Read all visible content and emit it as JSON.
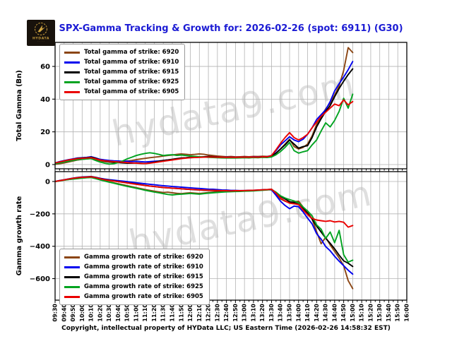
{
  "header": {
    "title": "SPX-Gamma Tracking & Growth for: 2026-02-26 (spot: 6911) (G30)"
  },
  "logo": {
    "brand": "HYDATA"
  },
  "watermark": "hydata9.com",
  "footer": "Copyright, intellectual property of HYData LLC; US Eastern Time (2026-02-26 14:58:32 EST)",
  "colors": {
    "title": "#1b1bd4",
    "grid": "#b3b3b3",
    "frame": "#000000",
    "watermark": "#dfdfdf",
    "series_brown": "#8B4513",
    "series_blue": "#0000EE",
    "series_black": "#000000",
    "series_green": "#00A320",
    "series_red": "#EA0000"
  },
  "x_axis": {
    "start": "09:30",
    "end": "16:00",
    "tick_step_minutes": 10,
    "minor_tick_minutes": 5,
    "data_end": "15:00",
    "labels": [
      "09:30",
      "09:40",
      "09:50",
      "10:00",
      "10:10",
      "10:20",
      "10:30",
      "10:40",
      "10:50",
      "11:00",
      "11:10",
      "11:20",
      "11:30",
      "11:40",
      "11:50",
      "12:00",
      "12:10",
      "12:20",
      "12:30",
      "12:40",
      "12:50",
      "13:00",
      "13:10",
      "13:20",
      "13:30",
      "13:40",
      "13:50",
      "14:00",
      "14:10",
      "14:20",
      "14:30",
      "14:40",
      "14:50",
      "15:00",
      "15:10",
      "15:20",
      "15:30",
      "15:40",
      "15:50",
      "16:00"
    ]
  },
  "chart_data": [
    {
      "type": "line",
      "panel": "top",
      "ylabel": "Total Gamma (Bn)",
      "ylim": [
        -2.6,
        74.7
      ],
      "yticks": [
        0,
        20,
        40,
        60
      ],
      "grid": true,
      "legend_position": "upper-left",
      "x_start": "09:30",
      "x_step_minutes": 5,
      "series": [
        {
          "name": "6920",
          "label": "Total gamma of strike: 6920",
          "color": "#8B4513",
          "values": [
            0.2,
            0.5,
            1.0,
            1.6,
            2.2,
            2.8,
            3.2,
            3.5,
            3.8,
            3.0,
            2.2,
            1.8,
            1.5,
            1.3,
            1.5,
            1.8,
            2.2,
            2.5,
            3.0,
            3.4,
            3.8,
            4.2,
            4.5,
            4.8,
            5.2,
            5.5,
            5.8,
            6.2,
            6.5,
            6.3,
            6.0,
            6.2,
            6.5,
            6.3,
            5.8,
            5.5,
            5.2,
            5.0,
            4.8,
            4.9,
            4.7,
            4.8,
            4.9,
            4.8,
            5.0,
            4.9,
            5.1,
            5.0,
            5.2,
            7.0,
            9.5,
            12.5,
            15.5,
            11.0,
            9.5,
            10.5,
            12.5,
            17.5,
            24.5,
            29.0,
            34.0,
            37.5,
            42.5,
            48.0,
            57.5,
            71.5,
            68.5
          ]
        },
        {
          "name": "6910",
          "label": "Total gamma of strike: 6910",
          "color": "#0000EE",
          "values": [
            1.0,
            1.8,
            2.4,
            3.0,
            3.5,
            4.0,
            4.2,
            4.4,
            4.8,
            4.0,
            3.2,
            2.8,
            2.5,
            2.3,
            2.2,
            2.0,
            2.0,
            1.8,
            2.0,
            1.8,
            1.6,
            1.8,
            2.0,
            2.2,
            2.5,
            2.8,
            3.0,
            3.4,
            3.8,
            4.0,
            4.2,
            4.4,
            4.5,
            4.6,
            4.8,
            4.7,
            4.6,
            4.5,
            4.5,
            4.6,
            4.4,
            4.5,
            4.6,
            4.5,
            4.7,
            4.6,
            4.8,
            4.8,
            5.5,
            8.5,
            12.0,
            14.5,
            17.0,
            15.0,
            14.0,
            15.5,
            18.5,
            22.5,
            27.5,
            30.5,
            33.5,
            38.5,
            45.0,
            49.5,
            53.5,
            58.0,
            63.0
          ]
        },
        {
          "name": "6915",
          "label": "Total gamma of strike: 6915",
          "color": "#000000",
          "values": [
            0.8,
            1.5,
            2.2,
            2.8,
            3.2,
            3.8,
            4.0,
            4.2,
            4.5,
            3.8,
            2.8,
            2.2,
            1.8,
            1.5,
            1.2,
            1.0,
            0.8,
            0.8,
            1.0,
            0.8,
            0.6,
            1.0,
            1.5,
            2.0,
            2.5,
            2.8,
            3.2,
            3.6,
            4.0,
            4.2,
            4.5,
            4.3,
            4.6,
            4.8,
            5.0,
            4.8,
            4.6,
            4.5,
            4.4,
            4.5,
            4.3,
            4.4,
            4.5,
            4.4,
            4.6,
            4.5,
            4.7,
            4.6,
            5.0,
            7.0,
            9.5,
            12.0,
            15.0,
            12.5,
            10.0,
            11.0,
            11.5,
            16.5,
            23.0,
            28.0,
            32.5,
            36.0,
            41.5,
            46.5,
            51.0,
            55.0,
            58.5
          ]
        },
        {
          "name": "6925",
          "label": "Total gamma of strike: 6925",
          "color": "#00A320",
          "values": [
            0.5,
            1.0,
            1.5,
            2.0,
            2.5,
            3.0,
            3.2,
            3.4,
            3.6,
            2.5,
            1.5,
            0.8,
            0.3,
            0.5,
            1.2,
            2.2,
            3.5,
            4.5,
            5.5,
            6.2,
            6.8,
            7.2,
            6.8,
            6.2,
            5.5,
            5.8,
            6.0,
            5.6,
            5.8,
            5.5,
            5.2,
            5.0,
            4.8,
            4.6,
            4.4,
            4.3,
            4.2,
            4.1,
            4.0,
            4.1,
            4.0,
            4.1,
            4.2,
            4.1,
            4.3,
            4.2,
            4.4,
            4.3,
            4.6,
            6.0,
            8.0,
            10.5,
            13.5,
            8.5,
            7.0,
            7.8,
            8.5,
            12.0,
            15.0,
            20.5,
            25.5,
            23.0,
            27.0,
            32.5,
            40.5,
            34.5,
            43.0
          ]
        },
        {
          "name": "6905",
          "label": "Total gamma of strike: 6905",
          "color": "#EA0000",
          "values": [
            1.0,
            1.6,
            2.2,
            2.8,
            3.2,
            3.6,
            3.8,
            4.0,
            4.2,
            3.5,
            2.8,
            2.3,
            2.0,
            1.8,
            1.6,
            1.4,
            1.2,
            1.0,
            0.8,
            0.7,
            0.6,
            0.8,
            1.2,
            1.6,
            2.0,
            2.4,
            2.8,
            3.2,
            3.6,
            3.9,
            4.2,
            4.3,
            4.4,
            4.5,
            4.6,
            4.6,
            4.5,
            4.5,
            4.4,
            4.5,
            4.4,
            4.5,
            4.5,
            4.5,
            4.6,
            4.5,
            4.7,
            4.7,
            5.5,
            9.0,
            13.0,
            16.5,
            19.5,
            16.5,
            15.0,
            16.5,
            18.5,
            22.5,
            26.0,
            29.5,
            32.0,
            34.5,
            37.0,
            36.0,
            39.5,
            36.5,
            38.5
          ]
        }
      ]
    },
    {
      "type": "line",
      "panel": "bottom",
      "ylabel": "Gamma growth rate",
      "ylim": [
        -733,
        61
      ],
      "yticks": [
        0,
        -200,
        -400,
        -600
      ],
      "grid": true,
      "legend_position": "lower-left",
      "x_start": "09:30",
      "x_step_minutes": 5,
      "series": [
        {
          "name": "6920",
          "label": "Gamma growth rate of strike: 6920",
          "color": "#8B4513",
          "values": [
            0,
            4,
            8,
            12,
            16,
            19,
            22,
            24,
            26,
            20,
            12,
            5,
            -2,
            -8,
            -14,
            -20,
            -26,
            -32,
            -38,
            -44,
            -50,
            -55,
            -60,
            -64,
            -68,
            -66,
            -70,
            -73,
            -75,
            -72,
            -70,
            -72,
            -74,
            -71,
            -68,
            -66,
            -64,
            -62,
            -61,
            -60,
            -59,
            -58,
            -57,
            -56,
            -55,
            -54,
            -52,
            -51,
            -50,
            -75,
            -108,
            -122,
            -132,
            -125,
            -122,
            -158,
            -190,
            -232,
            -310,
            -385,
            -345,
            -392,
            -432,
            -472,
            -520,
            -612,
            -662
          ]
        },
        {
          "name": "6910",
          "label": "Gamma growth rate of strike: 6910",
          "color": "#0000EE",
          "values": [
            0,
            6,
            11,
            16,
            21,
            25,
            28,
            29,
            31,
            26,
            20,
            15,
            11,
            8,
            5,
            2,
            -1,
            -4,
            -8,
            -11,
            -14,
            -17,
            -20,
            -23,
            -26,
            -28,
            -31,
            -33,
            -35,
            -37,
            -39,
            -41,
            -43,
            -45,
            -47,
            -48,
            -50,
            -52,
            -53,
            -55,
            -55,
            -56,
            -56,
            -55,
            -54,
            -53,
            -51,
            -50,
            -52,
            -85,
            -122,
            -148,
            -168,
            -152,
            -156,
            -188,
            -226,
            -262,
            -322,
            -356,
            -402,
            -428,
            -462,
            -492,
            -520,
            -548,
            -572
          ]
        },
        {
          "name": "6915",
          "label": "Gamma growth rate of strike: 6915",
          "color": "#000000",
          "values": [
            0,
            5,
            10,
            15,
            20,
            24,
            27,
            28,
            30,
            25,
            18,
            12,
            8,
            4,
            0,
            -4,
            -8,
            -12,
            -16,
            -20,
            -24,
            -28,
            -31,
            -34,
            -37,
            -39,
            -41,
            -43,
            -45,
            -47,
            -49,
            -51,
            -52,
            -54,
            -55,
            -56,
            -57,
            -58,
            -58,
            -59,
            -58,
            -58,
            -57,
            -56,
            -55,
            -54,
            -52,
            -50,
            -48,
            -68,
            -92,
            -108,
            -125,
            -130,
            -140,
            -168,
            -196,
            -232,
            -276,
            -312,
            -350,
            -382,
            -416,
            -455,
            -490,
            -505,
            -525
          ]
        },
        {
          "name": "6925",
          "label": "Gamma growth rate of strike: 6925",
          "color": "#00A320",
          "values": [
            0,
            4,
            8,
            12,
            15,
            18,
            21,
            23,
            25,
            18,
            10,
            3,
            -4,
            -10,
            -17,
            -24,
            -30,
            -36,
            -42,
            -48,
            -54,
            -60,
            -65,
            -70,
            -75,
            -80,
            -83,
            -80,
            -78,
            -76,
            -74,
            -76,
            -78,
            -75,
            -72,
            -70,
            -68,
            -66,
            -64,
            -63,
            -62,
            -61,
            -60,
            -59,
            -58,
            -56,
            -54,
            -52,
            -50,
            -66,
            -88,
            -102,
            -112,
            -120,
            -132,
            -158,
            -182,
            -212,
            -268,
            -295,
            -352,
            -312,
            -378,
            -302,
            -452,
            -498,
            -486
          ]
        },
        {
          "name": "6905",
          "label": "Gamma growth rate of strike: 6905",
          "color": "#EA0000",
          "values": [
            0,
            5,
            10,
            15,
            20,
            23,
            26,
            27,
            29,
            24,
            17,
            11,
            7,
            3,
            -1,
            -5,
            -9,
            -13,
            -17,
            -21,
            -25,
            -28,
            -31,
            -34,
            -37,
            -39,
            -41,
            -43,
            -45,
            -47,
            -49,
            -50,
            -52,
            -53,
            -54,
            -55,
            -56,
            -57,
            -57,
            -58,
            -57,
            -57,
            -56,
            -55,
            -54,
            -53,
            -51,
            -50,
            -48,
            -72,
            -102,
            -120,
            -134,
            -138,
            -142,
            -176,
            -205,
            -228,
            -238,
            -242,
            -246,
            -242,
            -250,
            -246,
            -252,
            -282,
            -272
          ]
        }
      ]
    }
  ]
}
